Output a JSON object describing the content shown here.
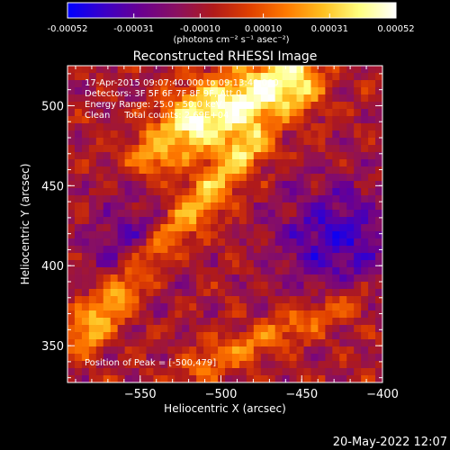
{
  "colorbar": {
    "ticks": [
      "-0.00052",
      "-0.00031",
      "-0.00010",
      "0.00010",
      "0.00031",
      "0.00052"
    ],
    "values": [
      -0.00052,
      -0.00031,
      -0.0001,
      0.0001,
      0.00031,
      0.00052
    ],
    "range": [
      -0.00052,
      0.00052
    ],
    "units_label": "(photons cm⁻² s⁻¹ asec⁻²)",
    "gradient": [
      "#0000ff",
      "#3a00c8",
      "#6a0090",
      "#8a1060",
      "#b01a1a",
      "#e04000",
      "#ff7a00",
      "#ffc020",
      "#ffff80",
      "#ffffff"
    ]
  },
  "chart_data": {
    "type": "heatmap",
    "title": "Reconstructed RHESSI Image",
    "xlabel": "Heliocentric X (arcsec)",
    "ylabel": "Heliocentric Y (arcsec)",
    "xlim": [
      -595,
      -400
    ],
    "ylim": [
      327,
      525
    ],
    "xticks": [
      -550,
      -500,
      -450,
      -400
    ],
    "xtick_labels": [
      "−550",
      "−500",
      "−450",
      "−400"
    ],
    "yticks": [
      350,
      400,
      450,
      500
    ],
    "ytick_labels": [
      "350",
      "400",
      "450",
      "500"
    ],
    "peak_position": [
      -500,
      479
    ],
    "annotations": [
      "17-Apr-2015 09:07:40.000 to 09:13:40.000",
      "Detectors: 3F 5F 6F 7F 8F 9F, Att 0",
      "Energy Range: 25.0 - 50.0 keV",
      "Clean     Total counts: 2.69E+04",
      "Position of Peak = [-500,479]"
    ]
  },
  "footer": {
    "date": "20-May-2022 12:07"
  }
}
